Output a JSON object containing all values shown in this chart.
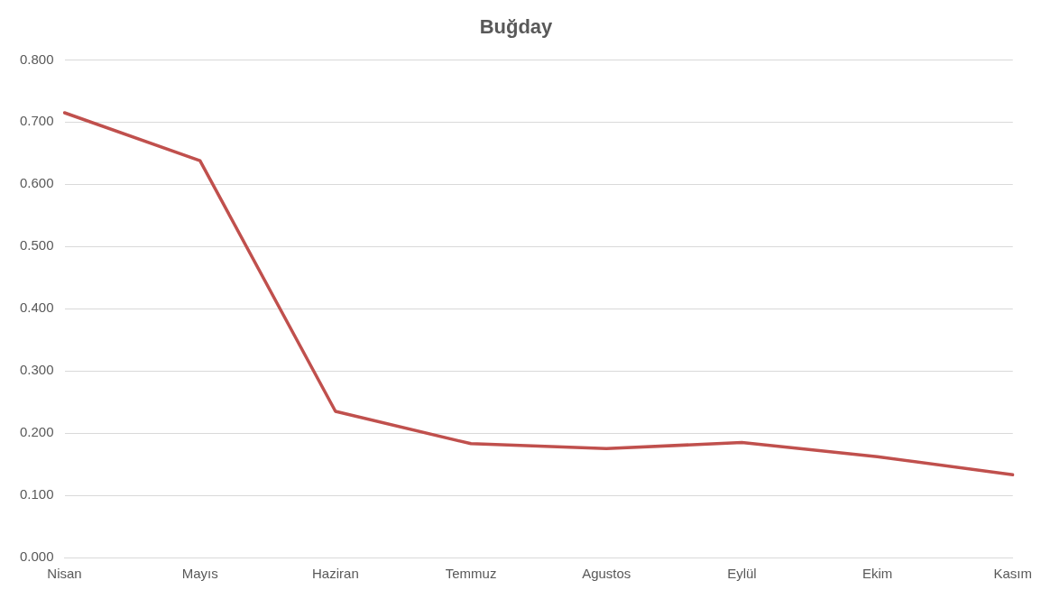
{
  "chart_data": {
    "type": "line",
    "title": "Buğday",
    "categories": [
      "Nisan",
      "Mayıs",
      "Haziran",
      "Temmuz",
      "Agustos",
      "Eylül",
      "Ekim",
      "Kasım"
    ],
    "series": [
      {
        "color": "#c0504d",
        "values": [
          0.715,
          0.638,
          0.235,
          0.183,
          0.175,
          0.185,
          0.162,
          0.133
        ]
      }
    ],
    "ylim": [
      0,
      0.8
    ],
    "yticks": [
      {
        "value": 0,
        "label": "0.000"
      },
      {
        "value": 0.1,
        "label": "0.100"
      },
      {
        "value": 0.2,
        "label": "0.200"
      },
      {
        "value": 0.3,
        "label": "0.300"
      },
      {
        "value": 0.4,
        "label": "0.400"
      },
      {
        "value": 0.5,
        "label": "0.500"
      },
      {
        "value": 0.6,
        "label": "0.600"
      },
      {
        "value": 0.7,
        "label": "0.700"
      },
      {
        "value": 0.8,
        "label": "0.800"
      }
    ],
    "grid": "y",
    "legend": false,
    "marker": "none",
    "line_style": "solid"
  }
}
